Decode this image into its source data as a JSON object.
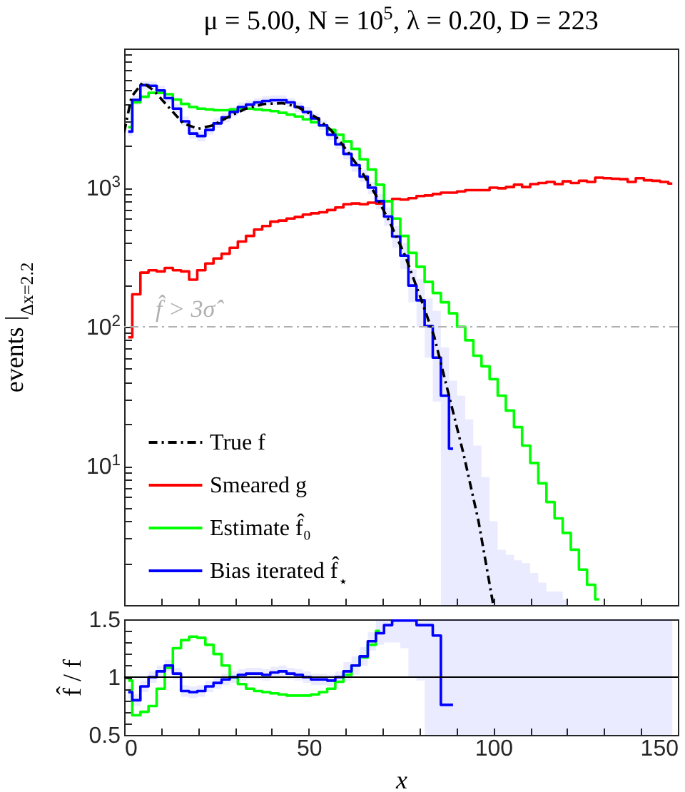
{
  "chart_data": [
    {
      "type": "step",
      "title": "μ = 5.00, N = 10$^{5}$, λ = 0.20, D = 223",
      "ylabel": "events |$_{Δx=2.2}$",
      "log": true,
      "legend": "bottom left",
      "tick_labels": "y",
      "xlim": [
        0,
        150
      ],
      "ylim": [
        1,
        10000
      ],
      "xticks": [
        0,
        {
          "value": 10,
          "label": null
        },
        {
          "value": 20,
          "label": null
        },
        {
          "value": 30,
          "label": null
        },
        {
          "value": 40,
          "label": null
        },
        50,
        {
          "value": 60,
          "label": null
        },
        {
          "value": 70,
          "label": null
        },
        {
          "value": 80,
          "label": null
        },
        {
          "value": 90,
          "label": null
        },
        100,
        {
          "value": 110,
          "label": null
        },
        {
          "value": 120,
          "label": null
        },
        {
          "value": 130,
          "label": null
        },
        {
          "value": 140,
          "label": null
        },
        150
      ],
      "yticks": [
        {
          "value": 2,
          "label": null
        },
        {
          "value": 3,
          "label": null
        },
        {
          "value": 4,
          "label": null
        },
        {
          "value": 5,
          "label": null
        },
        {
          "value": 6,
          "label": null
        },
        {
          "value": 7,
          "label": null
        },
        {
          "value": 8,
          "label": null
        },
        {
          "value": 9,
          "label": null
        },
        {
          "value": 10,
          "label": "10$^{1}$"
        },
        {
          "value": 20,
          "label": null
        },
        {
          "value": 30,
          "label": null
        },
        {
          "value": 40,
          "label": null
        },
        {
          "value": 50,
          "label": null
        },
        {
          "value": 60,
          "label": null
        },
        {
          "value": 70,
          "label": null
        },
        {
          "value": 80,
          "label": null
        },
        {
          "value": 90,
          "label": null
        },
        {
          "value": 100,
          "label": "10$^{2}$"
        },
        {
          "value": 200,
          "label": null
        },
        {
          "value": 300,
          "label": null
        },
        {
          "value": 400,
          "label": null
        },
        {
          "value": 500,
          "label": null
        },
        {
          "value": 600,
          "label": null
        },
        {
          "value": 700,
          "label": null
        },
        {
          "value": 800,
          "label": null
        },
        {
          "value": 900,
          "label": null
        },
        {
          "value": 1000,
          "label": "10$^{3}$"
        },
        {
          "value": 2000,
          "label": null
        },
        {
          "value": 3000,
          "label": null
        },
        {
          "value": 4000,
          "label": null
        },
        {
          "value": 5000,
          "label": null
        },
        {
          "value": 6000,
          "label": null
        },
        {
          "value": 7000,
          "label": null
        },
        {
          "value": 8000,
          "label": null
        },
        {
          "value": 9000,
          "label": null
        }
      ],
      "ref_lines": [
        {
          "axis": "y",
          "value": 100,
          "label": "f̂ > 3σ̂",
          "color": "#b0b0b0",
          "line_style": "dashed"
        }
      ],
      "x": [
        1.1,
        3.3,
        5.5,
        7.7,
        9.9,
        12.1,
        14.3,
        16.5,
        18.7,
        20.9,
        23.1,
        25.3,
        27.5,
        29.7,
        31.9,
        34.1,
        36.3,
        38.5,
        40.7,
        42.9,
        45.1,
        47.3,
        49.5,
        51.7,
        53.9,
        56.1,
        58.3,
        60.5,
        62.7,
        64.9,
        67.1,
        69.3,
        71.5,
        73.7,
        75.9,
        78.1,
        80.3,
        82.5,
        84.7,
        86.9,
        89.1,
        91.3,
        93.5,
        95.7,
        97.9,
        100.1,
        102.3,
        104.5,
        106.7,
        108.9,
        111.1,
        113.3,
        115.5,
        117.7,
        119.9,
        122.1,
        124.3,
        126.5,
        128.7,
        130.9,
        133.1,
        135.3,
        137.5,
        139.7,
        141.9,
        144.1,
        146.3,
        148.5
      ],
      "series": [
        {
          "name": "True f",
          "type": "line",
          "line_style": "dashed",
          "color": "#000000",
          "x": [
            0,
            2,
            5,
            8,
            12,
            16,
            20,
            24,
            28,
            33,
            38,
            43,
            47,
            52,
            56,
            60,
            64,
            68,
            72,
            76,
            80,
            84,
            88,
            92,
            96,
            100
          ],
          "values": [
            2500,
            4500,
            5700,
            5000,
            3800,
            2900,
            2650,
            2800,
            3200,
            3700,
            4000,
            4050,
            3800,
            3200,
            2600,
            1900,
            1350,
            900,
            560,
            330,
            170,
            85,
            32,
            12,
            4,
            1
          ]
        },
        {
          "name": "Smeared g",
          "color": "#ff0000",
          "values": [
            84,
            171,
            245,
            255,
            250,
            265,
            255,
            250,
            218,
            255,
            285,
            310,
            335,
            370,
            410,
            450,
            500,
            530,
            570,
            580,
            600,
            615,
            640,
            655,
            665,
            690,
            720,
            760,
            770,
            760,
            780,
            770,
            800,
            830,
            820,
            840,
            870,
            880,
            900,
            920,
            920,
            940,
            960,
            960,
            960,
            1000,
            990,
            1010,
            1050,
            1010,
            1060,
            1080,
            1100,
            1060,
            1110,
            1080,
            1120,
            1100,
            1180,
            1170,
            1160,
            1150,
            1100,
            1170,
            1130,
            1120,
            1100,
            1070
          ]
        },
        {
          "name": "Estimate f̂₀",
          "color": "#00ff00",
          "values": [
            2720,
            4100,
            4500,
            4800,
            4800,
            4700,
            4300,
            4000,
            3800,
            3700,
            3650,
            3600,
            3600,
            3650,
            3700,
            3700,
            3650,
            3600,
            3550,
            3450,
            3350,
            3250,
            3100,
            2950,
            2800,
            2600,
            2400,
            2150,
            1900,
            1600,
            1350,
            1050,
            800,
            600,
            450,
            340,
            270,
            210,
            175,
            150,
            125,
            100,
            80,
            62,
            52,
            42,
            32,
            25,
            19,
            14,
            10.5,
            7.5,
            5.5,
            4.2,
            3.3,
            2.5,
            1.8,
            1.4,
            1.1,
            null,
            null,
            null,
            null,
            null,
            null,
            null,
            null,
            null
          ]
        },
        {
          "name": "Bias iterated f̂$_{⋆}$",
          "color": "#0000ff",
          "values": [
            2530,
            4270,
            5450,
            5400,
            5000,
            4400,
            3700,
            3000,
            2450,
            2350,
            2600,
            2900,
            3200,
            3500,
            3800,
            3950,
            4100,
            4200,
            4250,
            4250,
            4100,
            3800,
            3500,
            3150,
            2800,
            2400,
            2050,
            1750,
            1450,
            1200,
            1000,
            800,
            620,
            445,
            325,
            198,
            155,
            101,
            60,
            32,
            13.3,
            null,
            null,
            null,
            null,
            null,
            null,
            null,
            null,
            null,
            null,
            null,
            null,
            null,
            null,
            null,
            null,
            null,
            null,
            null,
            null,
            null,
            null,
            null,
            null,
            null,
            null,
            null
          ],
          "lower": [
            2350,
            3950,
            5050,
            5000,
            4650,
            4100,
            3450,
            2800,
            2250,
            2150,
            2400,
            2700,
            2950,
            3250,
            3500,
            3650,
            3800,
            3900,
            3950,
            3950,
            3800,
            3500,
            3250,
            2900,
            2600,
            2200,
            1900,
            1600,
            1300,
            1100,
            900,
            700,
            530,
            370,
            260,
            150,
            100,
            60,
            29,
            1,
            1,
            1,
            1,
            1,
            1,
            1,
            1,
            1,
            1,
            1,
            1,
            1,
            1,
            1,
            1,
            null,
            null,
            null,
            null,
            null,
            null,
            null,
            null,
            null,
            null,
            null,
            null,
            null
          ],
          "upper": [
            2750,
            4600,
            5850,
            5800,
            5400,
            4750,
            4000,
            3250,
            2650,
            2550,
            2800,
            3150,
            3450,
            3800,
            4100,
            4250,
            4400,
            4550,
            4600,
            4600,
            4400,
            4100,
            3800,
            3400,
            3050,
            2600,
            2250,
            1900,
            1600,
            1350,
            1100,
            900,
            720,
            530,
            400,
            260,
            220,
            160,
            130,
            71,
            41,
            32,
            21.6,
            14,
            8.3,
            4.0,
            2.5,
            2.3,
            2.1,
            2.0,
            1.7,
            1.45,
            1.25,
            1.25,
            1.1,
            null,
            null,
            null,
            null,
            null,
            null,
            null,
            null,
            null,
            null,
            null,
            null,
            null
          ]
        }
      ]
    },
    {
      "type": "step",
      "xlabel": "x",
      "ylabel": "f̂ / f",
      "xlim": [
        0,
        150
      ],
      "ylim": [
        0.5,
        1.5
      ],
      "xticks": [
        0,
        {
          "value": 10,
          "label": null
        },
        {
          "value": 20,
          "label": null
        },
        {
          "value": 30,
          "label": null
        },
        {
          "value": 40,
          "label": null
        },
        50,
        {
          "value": 60,
          "label": null
        },
        {
          "value": 70,
          "label": null
        },
        {
          "value": 80,
          "label": null
        },
        {
          "value": 90,
          "label": null
        },
        100,
        {
          "value": 110,
          "label": null
        },
        {
          "value": 120,
          "label": null
        },
        {
          "value": 130,
          "label": null
        },
        {
          "value": 140,
          "label": null
        },
        150
      ],
      "yticks": [
        0.5,
        {
          "value": 0.6,
          "label": null
        },
        {
          "value": 0.7,
          "label": null
        },
        {
          "value": 0.8,
          "label": null
        },
        {
          "value": 0.9,
          "label": null
        },
        1,
        {
          "value": 1.1,
          "label": null
        },
        {
          "value": 1.2,
          "label": null
        },
        {
          "value": 1.3,
          "label": null
        },
        {
          "value": 1.4,
          "label": null
        },
        1.5
      ],
      "ref_lines": [
        {
          "axis": "y",
          "value": 1,
          "color": "#000000",
          "line_style": "solid"
        }
      ],
      "x": [
        1.1,
        3.3,
        5.5,
        7.7,
        9.9,
        12.1,
        14.3,
        16.5,
        18.7,
        20.9,
        23.1,
        25.3,
        27.5,
        29.7,
        31.9,
        34.1,
        36.3,
        38.5,
        40.7,
        42.9,
        45.1,
        47.3,
        49.5,
        51.7,
        53.9,
        56.1,
        58.3,
        60.5,
        62.7,
        64.9,
        67.1,
        69.3,
        71.5,
        73.7,
        75.9,
        78.1,
        80.3,
        82.5,
        84.7,
        86.9,
        89.1,
        91.3,
        93.5,
        95.7,
        97.9,
        100.1,
        102.3,
        104.5,
        106.7,
        108.9,
        111.1,
        113.3,
        115.5,
        117.7,
        119.9,
        122.1,
        124.3,
        126.5,
        128.7,
        130.9,
        133.1,
        135.3,
        137.5,
        139.7,
        141.9,
        144.1,
        146.3,
        148.5
      ],
      "series": [
        {
          "color": "#00ff00",
          "values": [
            0.97,
            0.67,
            0.7,
            0.75,
            0.9,
            1.08,
            1.25,
            1.32,
            1.35,
            1.34,
            1.28,
            1.2,
            1.1,
            1.0,
            0.94,
            0.9,
            0.88,
            0.87,
            0.86,
            0.85,
            0.84,
            0.84,
            0.84,
            0.85,
            0.87,
            0.9,
            0.96,
            1.02,
            1.1,
            1.17,
            1.28,
            1.4,
            null,
            null,
            null,
            null,
            null,
            null,
            null,
            null,
            null,
            null,
            null,
            null,
            null,
            null,
            null,
            null,
            null,
            null,
            null,
            null,
            null,
            null,
            null,
            null,
            null,
            null,
            null,
            null,
            null,
            null,
            null,
            null,
            null,
            null,
            null,
            null
          ]
        },
        {
          "color": "#0000ff",
          "values": [
            0.87,
            0.8,
            0.92,
            1.0,
            1.05,
            1.1,
            1.03,
            0.88,
            0.87,
            0.88,
            0.92,
            0.95,
            0.98,
            1.0,
            1.02,
            1.03,
            1.03,
            1.02,
            1.04,
            1.05,
            1.03,
            1.02,
            1.0,
            0.98,
            0.98,
            0.97,
            1.0,
            1.05,
            1.1,
            1.18,
            1.31,
            1.38,
            1.45,
            1.49,
            1.49,
            1.49,
            1.45,
            1.45,
            1.36,
            0.76,
            0.76,
            null,
            null,
            null,
            null,
            null,
            null,
            null,
            null,
            null,
            null,
            null,
            null,
            null,
            null,
            null,
            null,
            null,
            null,
            null,
            null,
            null,
            null,
            null,
            null,
            null,
            null,
            null
          ],
          "lower": [
            0.82,
            0.75,
            0.87,
            0.95,
            1.0,
            1.05,
            0.98,
            0.83,
            0.82,
            0.83,
            0.87,
            0.9,
            0.93,
            0.95,
            0.97,
            0.98,
            0.98,
            0.97,
            0.99,
            1.0,
            0.98,
            0.97,
            0.95,
            0.93,
            0.93,
            0.92,
            0.95,
            0.97,
            1.02,
            1.1,
            1.23,
            1.28,
            1.3,
            1.3,
            1.25,
            1.0,
            0.97,
            0.5,
            0.5,
            0.5,
            0.5,
            0.5,
            0.5,
            0.5,
            0.5,
            0.5,
            0.5,
            0.5,
            0.5,
            0.5,
            0.5,
            0.5,
            0.5,
            0.5,
            0.5,
            0.5,
            0.5,
            0.5,
            0.5,
            0.5,
            0.5,
            0.5,
            0.5,
            0.5,
            0.5,
            0.5,
            0.5,
            0.5
          ],
          "upper": [
            0.92,
            0.85,
            0.97,
            1.05,
            1.1,
            1.15,
            1.08,
            0.93,
            0.92,
            0.93,
            0.97,
            1.0,
            1.03,
            1.05,
            1.07,
            1.08,
            1.08,
            1.07,
            1.09,
            1.1,
            1.08,
            1.07,
            1.05,
            1.03,
            1.03,
            1.02,
            1.05,
            1.13,
            1.18,
            1.26,
            1.39,
            1.5,
            1.5,
            1.5,
            1.5,
            1.5,
            1.5,
            1.5,
            1.5,
            1.5,
            1.5,
            1.5,
            1.5,
            1.5,
            1.5,
            1.5,
            1.5,
            1.5,
            1.5,
            1.5,
            1.5,
            1.5,
            1.5,
            1.5,
            1.5,
            1.5,
            1.5,
            1.5,
            1.5,
            1.5,
            1.5,
            1.5,
            1.5,
            1.5,
            1.5,
            1.5,
            1.5,
            1.5
          ]
        }
      ]
    }
  ]
}
